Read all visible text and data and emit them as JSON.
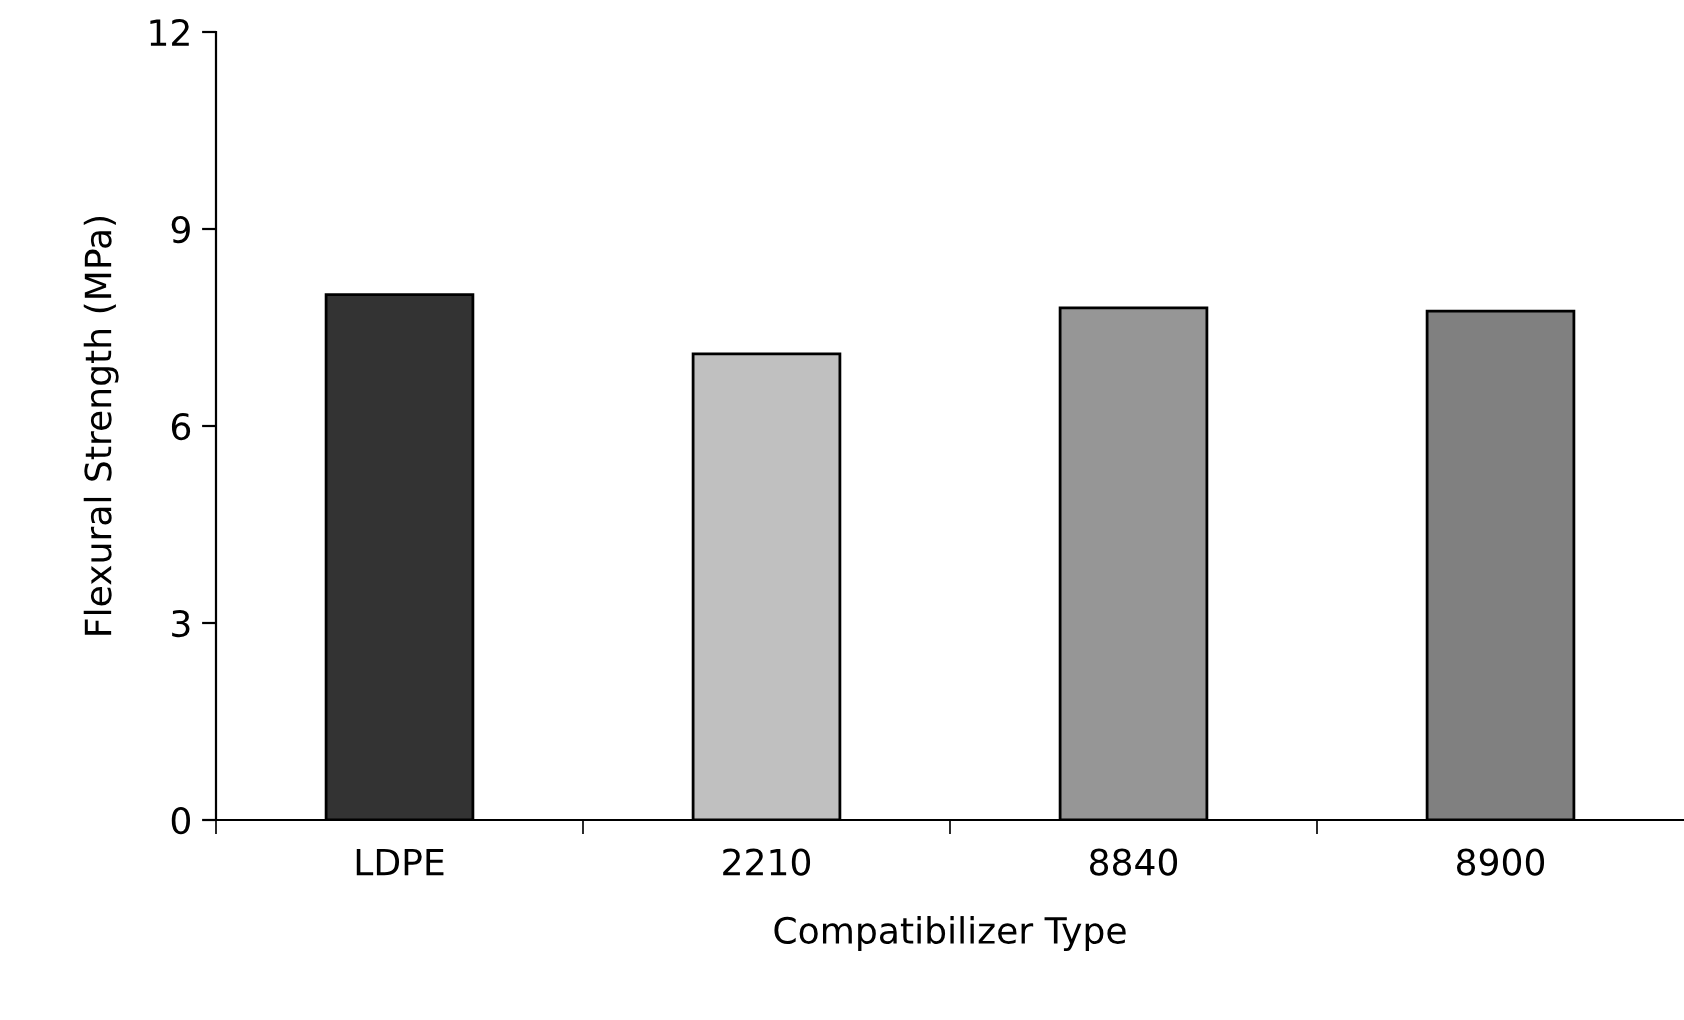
{
  "chart_data": {
    "type": "bar",
    "xlabel": "Compatibilizer Type",
    "ylabel": "Flexural Strength (MPa)",
    "categories": [
      "LDPE",
      "2210",
      "8840",
      "8900"
    ],
    "values": [
      8.0,
      7.1,
      7.8,
      7.75
    ],
    "colors": [
      "#333333",
      "#c0c0c0",
      "#969696",
      "#808080"
    ],
    "ylim": [
      0,
      12
    ],
    "yticks": [
      0,
      3,
      6,
      9,
      12
    ],
    "grid": false,
    "legend": false
  }
}
